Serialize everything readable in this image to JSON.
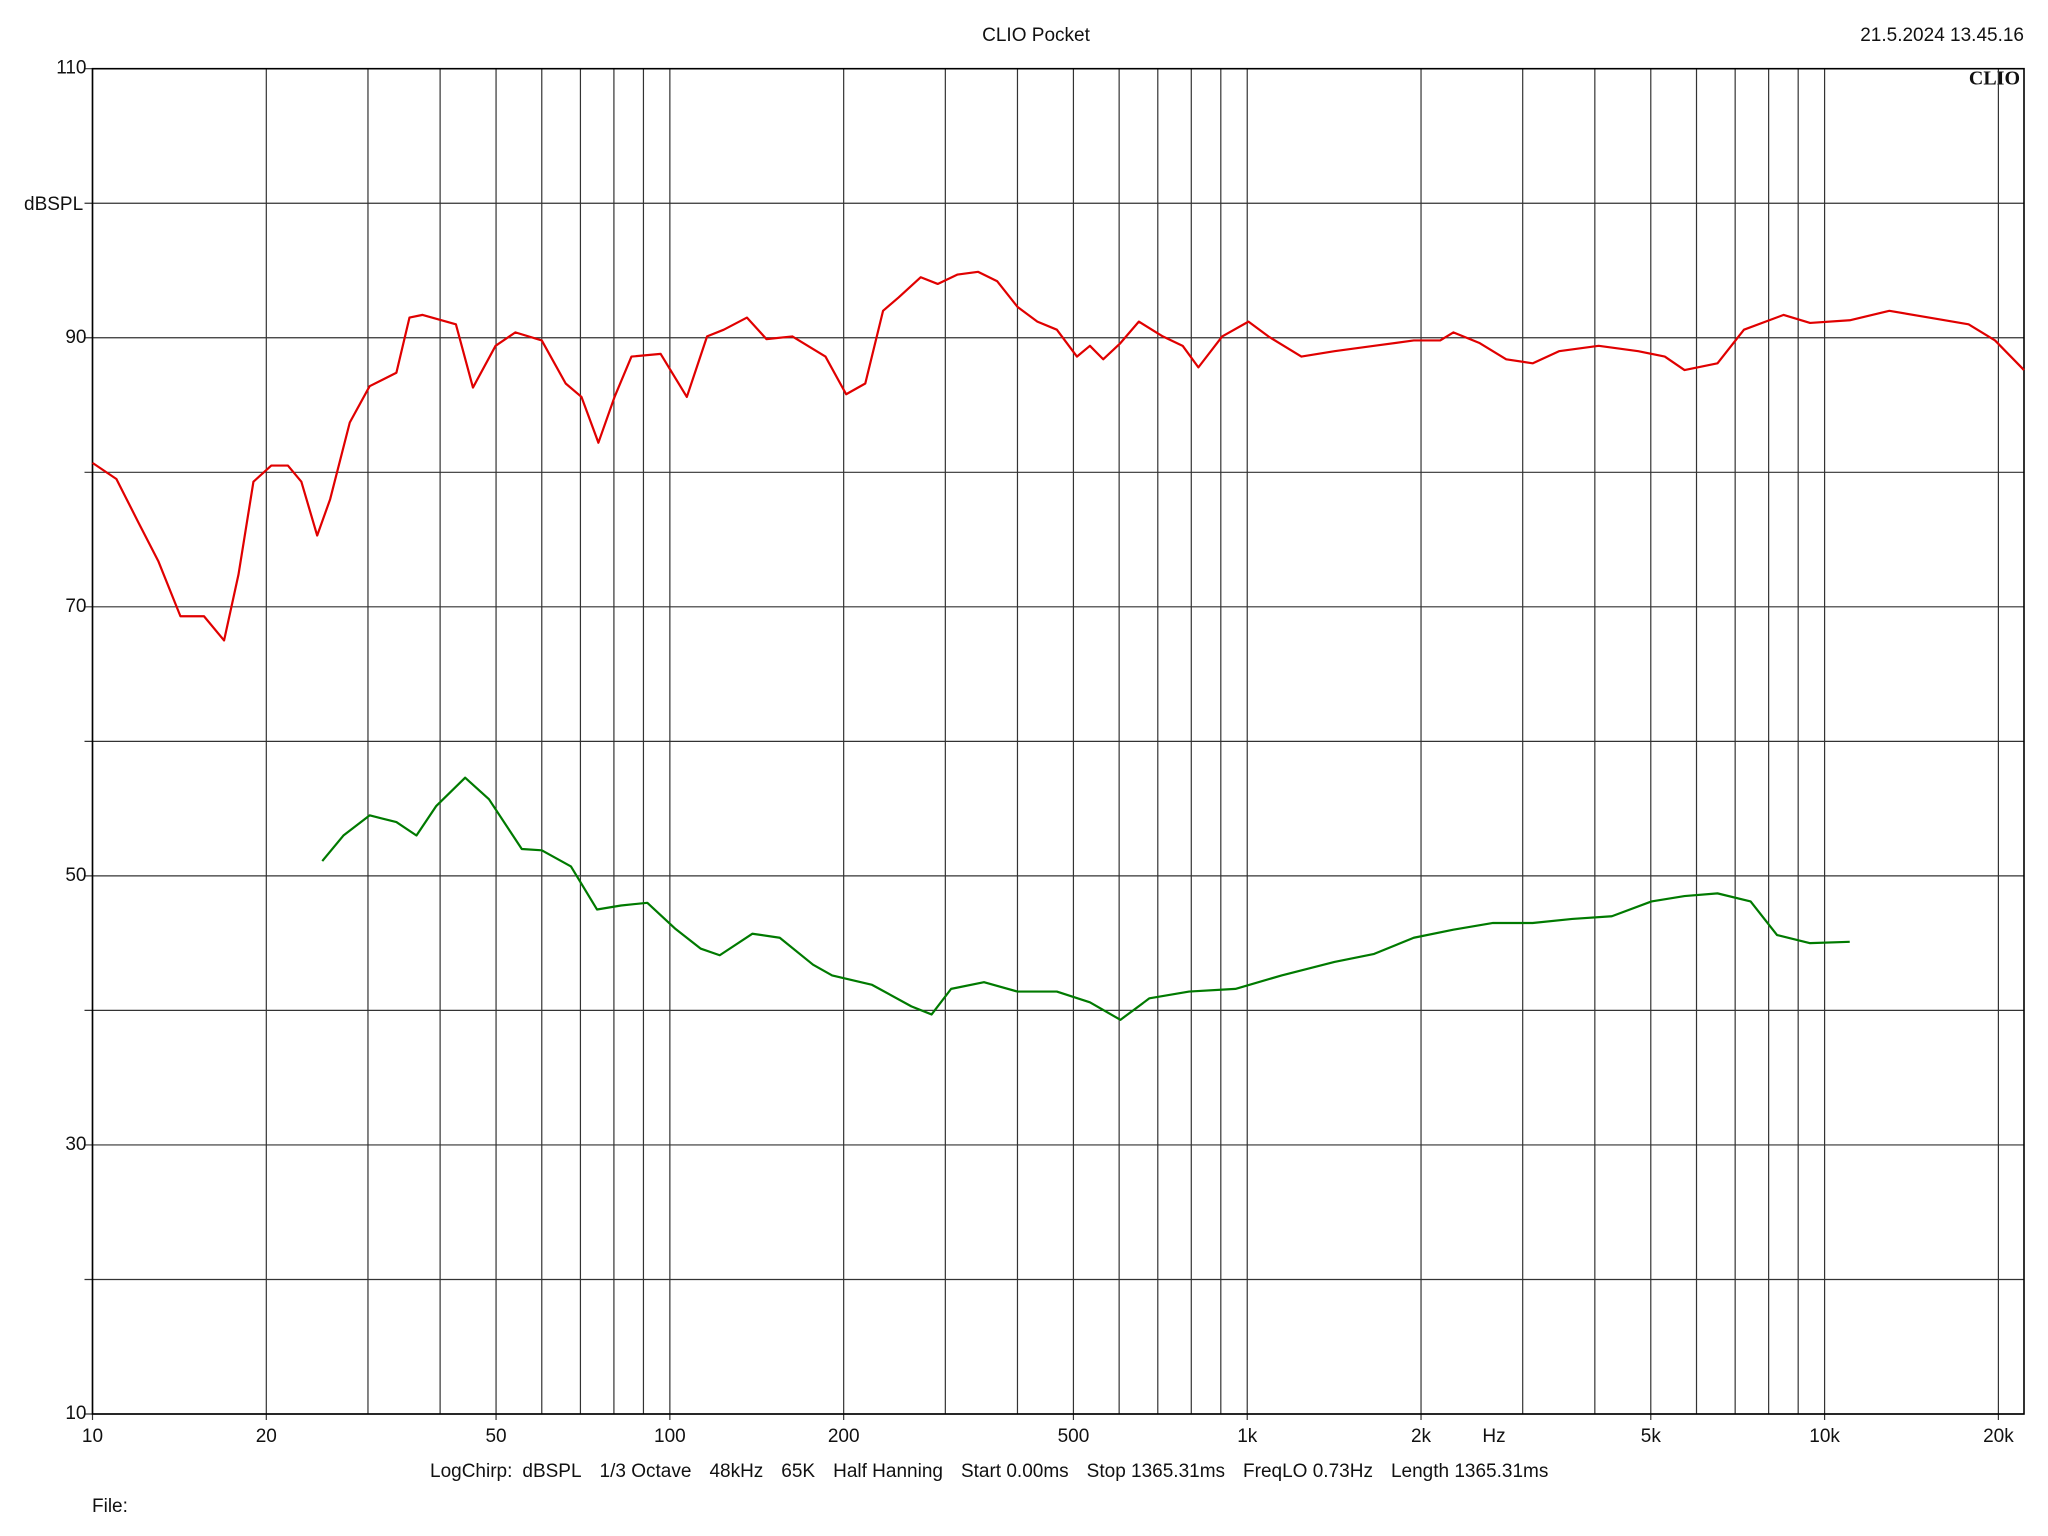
{
  "chart_data": {
    "type": "line",
    "title": "CLIO Pocket",
    "timestamp": "21.5.2024 13.45.16",
    "logo": "CLIO",
    "ylabel": "dBSPL",
    "xlabel": "Hz",
    "xscale": "log",
    "grid": true,
    "xlim": [
      10,
      22150
    ],
    "ylim": [
      10,
      110
    ],
    "yticks": [
      10,
      30,
      50,
      70,
      90,
      110
    ],
    "y_minor_ticks": [
      20,
      40,
      60,
      80,
      100
    ],
    "xticks": [
      10,
      20,
      50,
      100,
      200,
      500,
      {
        "value": 1000,
        "label": "1k"
      },
      {
        "value": 2000,
        "label": "2k"
      },
      {
        "value": 5000,
        "label": "5k"
      },
      {
        "value": 10000,
        "label": "10k"
      },
      {
        "value": 20000,
        "label": "20k"
      }
    ],
    "x_minor_ticks": [
      30,
      40,
      60,
      70,
      80,
      90,
      300,
      400,
      600,
      700,
      800,
      900,
      3000,
      4000,
      6000,
      7000,
      8000,
      9000
    ],
    "series": [
      {
        "color": "#e00000",
        "x": [
          10,
          11,
          12,
          13,
          14.2,
          15.6,
          16.9,
          17.9,
          19.0,
          20.4,
          21.8,
          23.0,
          24.5,
          25.8,
          27.9,
          30.2,
          33.6,
          35.4,
          37.3,
          42.6,
          45.6,
          49.9,
          54.0,
          60.0,
          66.0,
          70.3,
          75.2,
          80.2,
          85.8,
          96.4,
          107,
          116,
          124,
          136,
          147,
          163,
          186,
          202,
          218,
          234,
          249,
          272,
          291,
          315,
          342,
          369,
          400,
          433,
          468,
          507,
          534,
          563,
          603,
          649,
          714,
          773,
          823,
          905,
          1005,
          1088,
          1241,
          1416,
          1659,
          1943,
          2159,
          2275,
          2528,
          2809,
          3121,
          3467,
          4062,
          4757,
          5287,
          5720,
          6524,
          7250,
          8494,
          9437,
          11055,
          12946,
          15165,
          17757,
          19733,
          22150
        ],
        "values": [
          80.7,
          79.5,
          76.3,
          73.4,
          69.3,
          69.3,
          67.5,
          72.4,
          79.3,
          80.5,
          80.5,
          79.3,
          75.3,
          78.0,
          83.7,
          86.4,
          87.4,
          91.5,
          91.7,
          91.0,
          86.3,
          89.4,
          90.4,
          89.8,
          86.6,
          85.6,
          82.2,
          85.6,
          88.6,
          88.8,
          85.6,
          90.1,
          90.6,
          91.5,
          89.9,
          90.1,
          88.6,
          85.8,
          86.6,
          92.0,
          93.0,
          94.5,
          94.0,
          94.7,
          94.9,
          94.2,
          92.3,
          91.2,
          90.6,
          88.6,
          89.4,
          88.4,
          89.6,
          91.2,
          90.1,
          89.4,
          87.8,
          90.1,
          91.2,
          90.1,
          88.6,
          89.0,
          89.4,
          89.8,
          89.8,
          90.4,
          89.6,
          88.4,
          88.1,
          89.0,
          89.4,
          89.0,
          88.6,
          87.6,
          88.1,
          90.6,
          91.7,
          91.1,
          91.3,
          92.0,
          91.5,
          91.0,
          89.8,
          87.6
        ]
      },
      {
        "color": "#007a00",
        "x": [
          25,
          27.2,
          30.2,
          33.6,
          36.4,
          39.4,
          44.2,
          48.6,
          55.4,
          60.0,
          67.4,
          74.8,
          82.3,
          91.4,
          102,
          113,
          122,
          139,
          155,
          177,
          191,
          224,
          262,
          284,
          307,
          350,
          400,
          468,
          534,
          603,
          677,
          793,
          954,
          1147,
          1416,
          1659,
          1943,
          2275,
          2665,
          3121,
          3655,
          4281,
          5014,
          5720,
          6524,
          7445,
          8273,
          9437,
          11055
        ],
        "values": [
          51.1,
          53.0,
          54.5,
          54.0,
          53.0,
          55.2,
          57.3,
          55.7,
          52.0,
          51.9,
          50.7,
          47.5,
          47.8,
          48.0,
          46.1,
          44.6,
          44.1,
          45.7,
          45.4,
          43.4,
          42.6,
          41.9,
          40.3,
          39.7,
          41.6,
          42.1,
          41.4,
          41.4,
          40.6,
          39.3,
          40.9,
          41.4,
          41.6,
          42.6,
          43.6,
          44.2,
          45.4,
          46.0,
          46.5,
          46.5,
          46.8,
          47.0,
          48.1,
          48.5,
          48.7,
          48.1,
          45.6,
          45.0,
          45.1
        ]
      }
    ],
    "settings": [
      "LogChirp:",
      "dBSPL",
      "1/3 Octave",
      "48kHz",
      "65K",
      "Half Hanning",
      "Start 0.00ms",
      "Stop 1365.31ms",
      "FreqLO 0.73Hz",
      "Length 1365.31ms"
    ],
    "file_label": "File:"
  }
}
